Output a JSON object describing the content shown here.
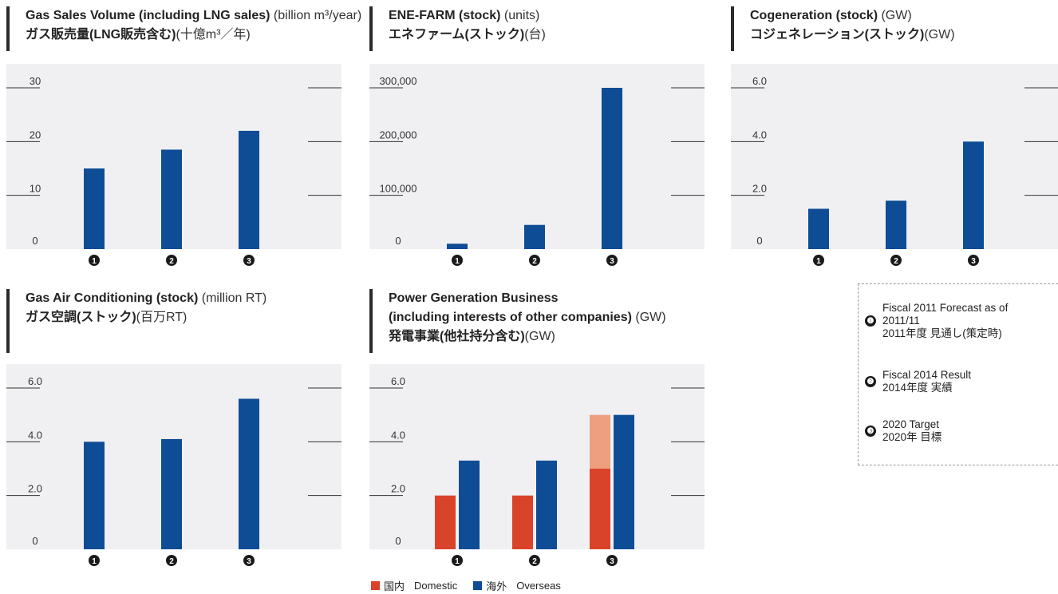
{
  "colors": {
    "overseas": "#0e4c96",
    "domestic": "#d9432a",
    "domestic_light": "#ee9f80",
    "plot_bg": "#f0f0f2"
  },
  "markers": [
    "❶",
    "❷",
    "❸"
  ],
  "charts": [
    {
      "id": "gas",
      "title_en": "Gas Sales Volume (including LNG sales)",
      "title_en_unit": "(billion m³/year)",
      "title_jp": "ガス販売量(LNG販売含む)",
      "title_jp_unit": "(十億m³／年)"
    },
    {
      "id": "enefarm",
      "title_en": "ENE-FARM (stock)",
      "title_en_unit": "(units)",
      "title_jp": "エネファーム(ストック)",
      "title_jp_unit": "(台)"
    },
    {
      "id": "cogen",
      "title_en": "Cogeneration (stock)",
      "title_en_unit": "(GW)",
      "title_jp": "コジェネレーション(ストック)",
      "title_jp_unit": "(GW)"
    },
    {
      "id": "aircon",
      "title_en": "Gas Air Conditioning (stock)",
      "title_en_unit": "(million RT)",
      "title_jp": "ガス空調(ストック)",
      "title_jp_unit": "(百万RT)"
    },
    {
      "id": "power",
      "title_en": "Power Generation Business",
      "title_en2": "(including interests of other companies)",
      "title_en_unit": "(GW)",
      "title_jp": "発電事業(他社持分含む)",
      "title_jp_unit": "(GW)"
    }
  ],
  "legend": {
    "item1_en": "Fiscal 2011 Forecast as of",
    "item1_en2": "2011/11",
    "item1_jp": "2011年度 見通し(策定時)",
    "item2_en": "Fiscal 2014 Result",
    "item2_jp": "2014年度 実績",
    "item3_en": "2020 Target",
    "item3_jp": "2020年 目標"
  },
  "power_legend": {
    "domestic_jp": "国内",
    "domestic_en": "Domestic",
    "overseas_jp": "海外",
    "overseas_en": "Overseas"
  },
  "chart_data": [
    {
      "type": "bar",
      "title": "Gas Sales Volume (including LNG sales)",
      "ylabel": "billion m³/year",
      "categories": [
        "❶",
        "❷",
        "❸"
      ],
      "ylim": [
        0,
        30
      ],
      "ticks": [
        "0",
        "10",
        "20",
        "30"
      ],
      "tick_values": [
        0,
        10,
        20,
        30
      ],
      "values": [
        15,
        18.5,
        22
      ]
    },
    {
      "type": "bar",
      "title": "ENE-FARM (stock)",
      "ylabel": "units",
      "categories": [
        "❶",
        "❷",
        "❸"
      ],
      "ylim": [
        0,
        300000
      ],
      "ticks": [
        "0",
        "100,000",
        "200,000",
        "300,000"
      ],
      "tick_values": [
        0,
        100000,
        200000,
        300000
      ],
      "values": [
        10000,
        45000,
        300000
      ]
    },
    {
      "type": "bar",
      "title": "Cogeneration (stock)",
      "ylabel": "GW",
      "categories": [
        "❶",
        "❷",
        "❸"
      ],
      "ylim": [
        0,
        6
      ],
      "ticks": [
        "0",
        "2.0",
        "4.0",
        "6.0"
      ],
      "tick_values": [
        0,
        2,
        4,
        6
      ],
      "values": [
        1.5,
        1.8,
        4.0
      ]
    },
    {
      "type": "bar",
      "title": "Gas Air Conditioning (stock)",
      "ylabel": "million RT",
      "categories": [
        "❶",
        "❷",
        "❸"
      ],
      "ylim": [
        0,
        6
      ],
      "ticks": [
        "0",
        "2.0",
        "4.0",
        "6.0"
      ],
      "tick_values": [
        0,
        2,
        4,
        6
      ],
      "values": [
        4.0,
        4.1,
        5.6
      ]
    },
    {
      "type": "bar",
      "title": "Power Generation Business (including interests of other companies)",
      "ylabel": "GW",
      "categories": [
        "❶",
        "❷",
        "❸"
      ],
      "ylim": [
        0,
        6
      ],
      "ticks": [
        "0",
        "2.0",
        "4.0",
        "6.0"
      ],
      "tick_values": [
        0,
        2,
        4,
        6
      ],
      "series": [
        {
          "name": "国内 Domestic",
          "values": [
            2.0,
            2.0,
            5.0
          ],
          "base_values": [
            2.0,
            2.0,
            3.0
          ]
        },
        {
          "name": "海外 Overseas",
          "values": [
            3.3,
            3.3,
            5.0
          ]
        }
      ]
    }
  ]
}
